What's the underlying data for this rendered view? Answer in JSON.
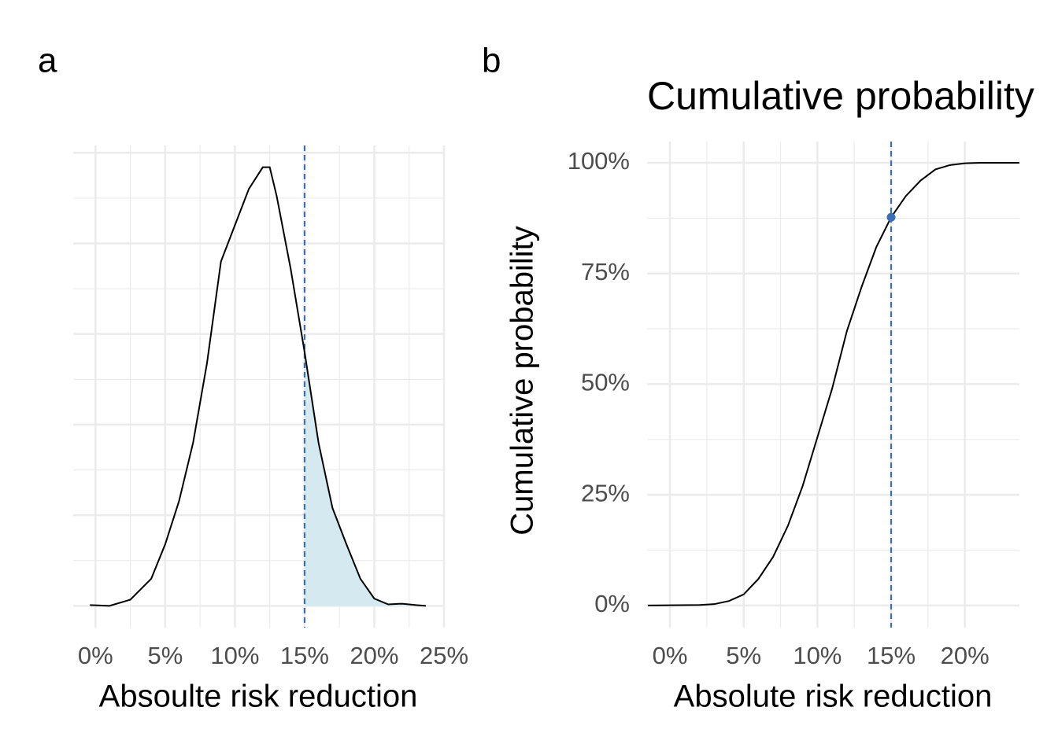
{
  "chart_data": [
    {
      "type": "density",
      "tag": "a",
      "x_label": "Absoulte risk reduction",
      "x": [
        -0.4,
        1,
        2.5,
        4,
        5,
        6,
        7,
        8,
        9,
        10,
        11,
        12,
        12.5,
        13,
        14,
        15,
        16,
        17,
        18,
        19,
        20,
        21,
        22,
        23,
        23.7
      ],
      "values": [
        0.0002,
        0,
        0.0017,
        0.0075,
        0.017,
        0.029,
        0.045,
        0.067,
        0.095,
        0.105,
        0.115,
        0.121,
        0.121,
        0.113,
        0.093,
        0.07,
        0.045,
        0.027,
        0.017,
        0.0075,
        0.002,
        0.0004,
        0.0006,
        0.0002,
        0
      ],
      "color": "#000000",
      "fill_color": "#d5e9f1",
      "threshold": 15,
      "threshold_color": "#3b6eb4",
      "xlim": [
        -1.6,
        25
      ],
      "ylim": [
        -0.006,
        0.127
      ],
      "xticks": [
        {
          "value": 0,
          "label": "0%"
        },
        {
          "value": 5,
          "label": "5%"
        },
        {
          "value": 10,
          "label": "10%"
        },
        {
          "value": 15,
          "label": "15%"
        },
        {
          "value": 20,
          "label": "20%"
        },
        {
          "value": 25,
          "label": "25%"
        }
      ],
      "yticks": [
        0,
        0.025,
        0.05,
        0.075,
        0.1,
        0.125
      ],
      "grid": true
    },
    {
      "type": "line",
      "tag": "b",
      "title": "Cumulative probability",
      "x_label": "Absolute risk reduction",
      "y_label": "Cumulative probability",
      "x": [
        -1.5,
        2,
        3,
        4,
        5,
        6,
        7,
        8,
        9,
        10,
        11,
        12,
        13,
        14,
        15,
        16,
        17,
        18,
        19,
        20,
        21,
        23.7
      ],
      "values": [
        0,
        0.1,
        0.3,
        1,
        2.5,
        6,
        11,
        18,
        27,
        38,
        49,
        62,
        72,
        81,
        87.7,
        92.5,
        96,
        98.5,
        99.5,
        99.9,
        100,
        100
      ],
      "color": "#000000",
      "threshold": 15,
      "threshold_color": "#3b6eb4",
      "marker": {
        "x": 15,
        "y": 87.7
      },
      "xlim": [
        -1.55,
        23.7
      ],
      "ylim": [
        -5,
        104.8
      ],
      "xticks": [
        {
          "value": 0,
          "label": "0%"
        },
        {
          "value": 5,
          "label": "5%"
        },
        {
          "value": 10,
          "label": "10%"
        },
        {
          "value": 15,
          "label": "15%"
        },
        {
          "value": 20,
          "label": "20%"
        }
      ],
      "yticks": [
        {
          "value": 0,
          "label": "0%"
        },
        {
          "value": 25,
          "label": "25%"
        },
        {
          "value": 50,
          "label": "50%"
        },
        {
          "value": 75,
          "label": "75%"
        },
        {
          "value": 100,
          "label": "100%"
        }
      ],
      "grid": true
    }
  ]
}
